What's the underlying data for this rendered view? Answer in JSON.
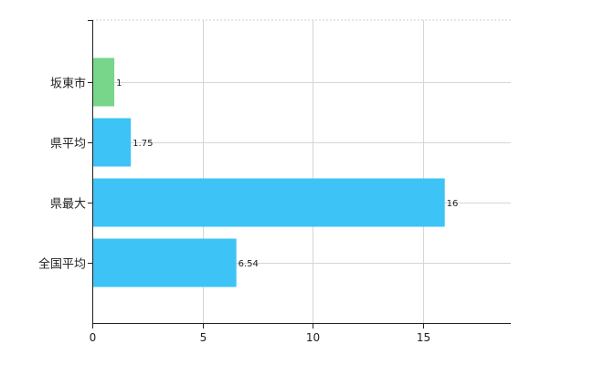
{
  "chart_data": {
    "type": "bar",
    "orientation": "horizontal",
    "title": "",
    "xlabel": "",
    "ylabel": "",
    "categories": [
      "坂東市",
      "県平均",
      "県最大",
      "全国平均"
    ],
    "values": [
      1,
      1.75,
      16,
      6.54
    ],
    "value_labels": [
      "1",
      "1.75",
      "16",
      "6.54"
    ],
    "bar_colors": [
      "#77D68A",
      "#3DC3F5",
      "#3DC3F5",
      "#3DC3F5"
    ],
    "xlim": [
      0,
      19
    ],
    "xticks": [
      0,
      5,
      10,
      15
    ],
    "xtick_labels": [
      "0",
      "5",
      "10",
      "15"
    ],
    "grid": true,
    "legend": "none"
  }
}
